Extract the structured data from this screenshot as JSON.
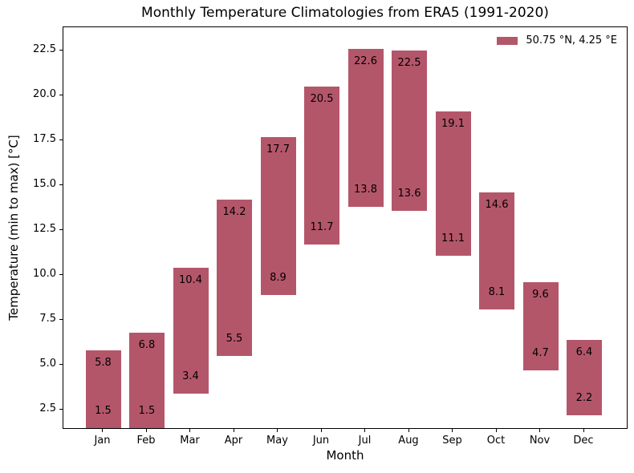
{
  "chart_data": {
    "type": "bar",
    "subtype": "floating-range-bars",
    "title": "Monthly Temperature Climatologies from ERA5 (1991-2020)",
    "xlabel": "Month",
    "ylabel": "Temperature (min to max) [°C]",
    "categories": [
      "Jan",
      "Feb",
      "Mar",
      "Apr",
      "May",
      "Jun",
      "Jul",
      "Aug",
      "Sep",
      "Oct",
      "Nov",
      "Dec"
    ],
    "series": [
      {
        "name": "50.75 °N, 4.25 °E",
        "min": [
          1.5,
          1.5,
          3.4,
          5.5,
          8.9,
          11.7,
          13.8,
          13.6,
          11.1,
          8.1,
          4.7,
          2.2
        ],
        "max": [
          5.8,
          6.8,
          10.4,
          14.2,
          17.7,
          20.5,
          22.6,
          22.5,
          19.1,
          14.6,
          9.6,
          6.4
        ]
      }
    ],
    "ylim": [
      1.4,
      23.8
    ],
    "yticks": [
      2.5,
      5.0,
      7.5,
      10.0,
      12.5,
      15.0,
      17.5,
      20.0,
      22.5
    ],
    "grid": false,
    "legend": {
      "position": "upper right",
      "label": "50.75 °N, 4.25 °E"
    },
    "colors": {
      "bar": "#b4566a",
      "text": "#000000",
      "spine": "#000000",
      "background": "#ffffff"
    }
  }
}
